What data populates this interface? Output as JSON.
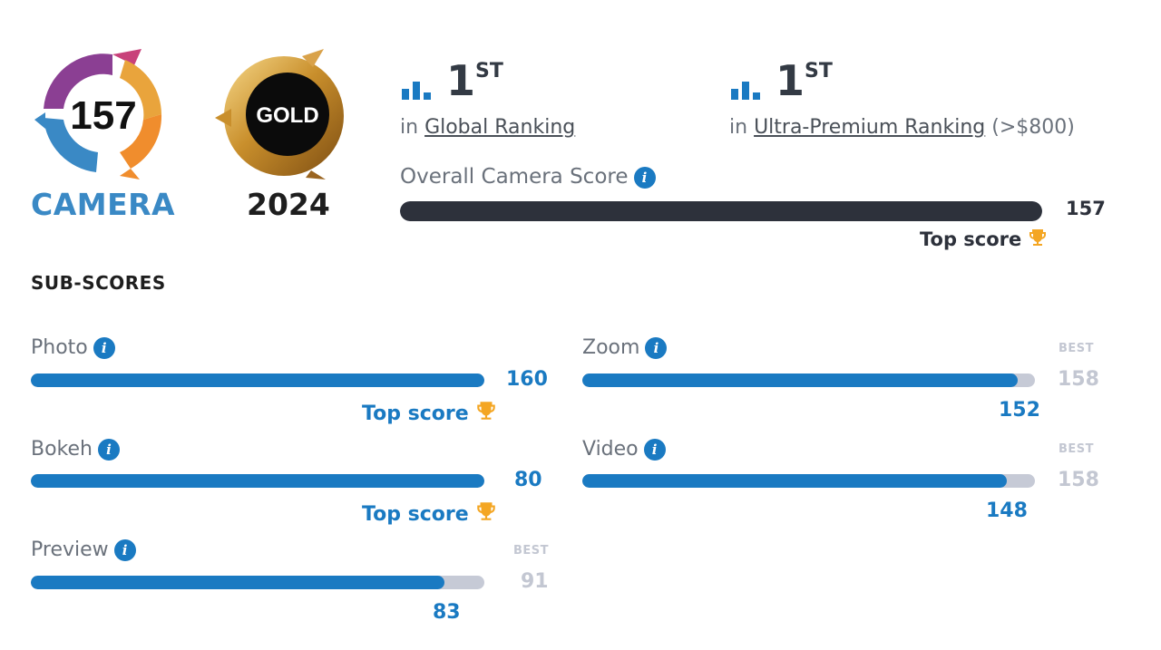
{
  "badges": {
    "camera": {
      "score": "157",
      "label": "CAMERA"
    },
    "gold": {
      "text": "GOLD",
      "year": "2024"
    }
  },
  "rankings": [
    {
      "number": "1",
      "suffix": "ST",
      "prefix": "in",
      "link": "Global Ranking",
      "extra": ""
    },
    {
      "number": "1",
      "suffix": "ST",
      "prefix": "in",
      "link": "Ultra-Premium Ranking",
      "extra": "(>$800)"
    }
  ],
  "overall": {
    "label": "Overall Camera Score",
    "value": "157",
    "progress": 1.0,
    "top_score_label": "Top score"
  },
  "subscores_title": "SUB-SCORES",
  "subscores": {
    "photo": {
      "label": "Photo",
      "value": "160",
      "progress": 1.0,
      "top_score_label": "Top score"
    },
    "bokeh": {
      "label": "Bokeh",
      "value": "80",
      "progress": 1.0,
      "top_score_label": "Top score"
    },
    "preview": {
      "label": "Preview",
      "value": "83",
      "progress": 0.912,
      "best_label": "BEST",
      "best_value": "91"
    },
    "zoom": {
      "label": "Zoom",
      "value": "152",
      "progress": 0.962,
      "best_label": "BEST",
      "best_value": "158"
    },
    "video": {
      "label": "Video",
      "value": "148",
      "progress": 0.937,
      "best_label": "BEST",
      "best_value": "158"
    }
  },
  "colors": {
    "accent": "#1a7ac2",
    "track": "#c6cad6",
    "overall_bar": "#2d313b",
    "trophy": "#f4a623",
    "camera_label": "#3a89c5"
  },
  "icons": {
    "info": "info-icon",
    "trophy": "trophy-icon",
    "ranking": "bar-chart-icon"
  }
}
